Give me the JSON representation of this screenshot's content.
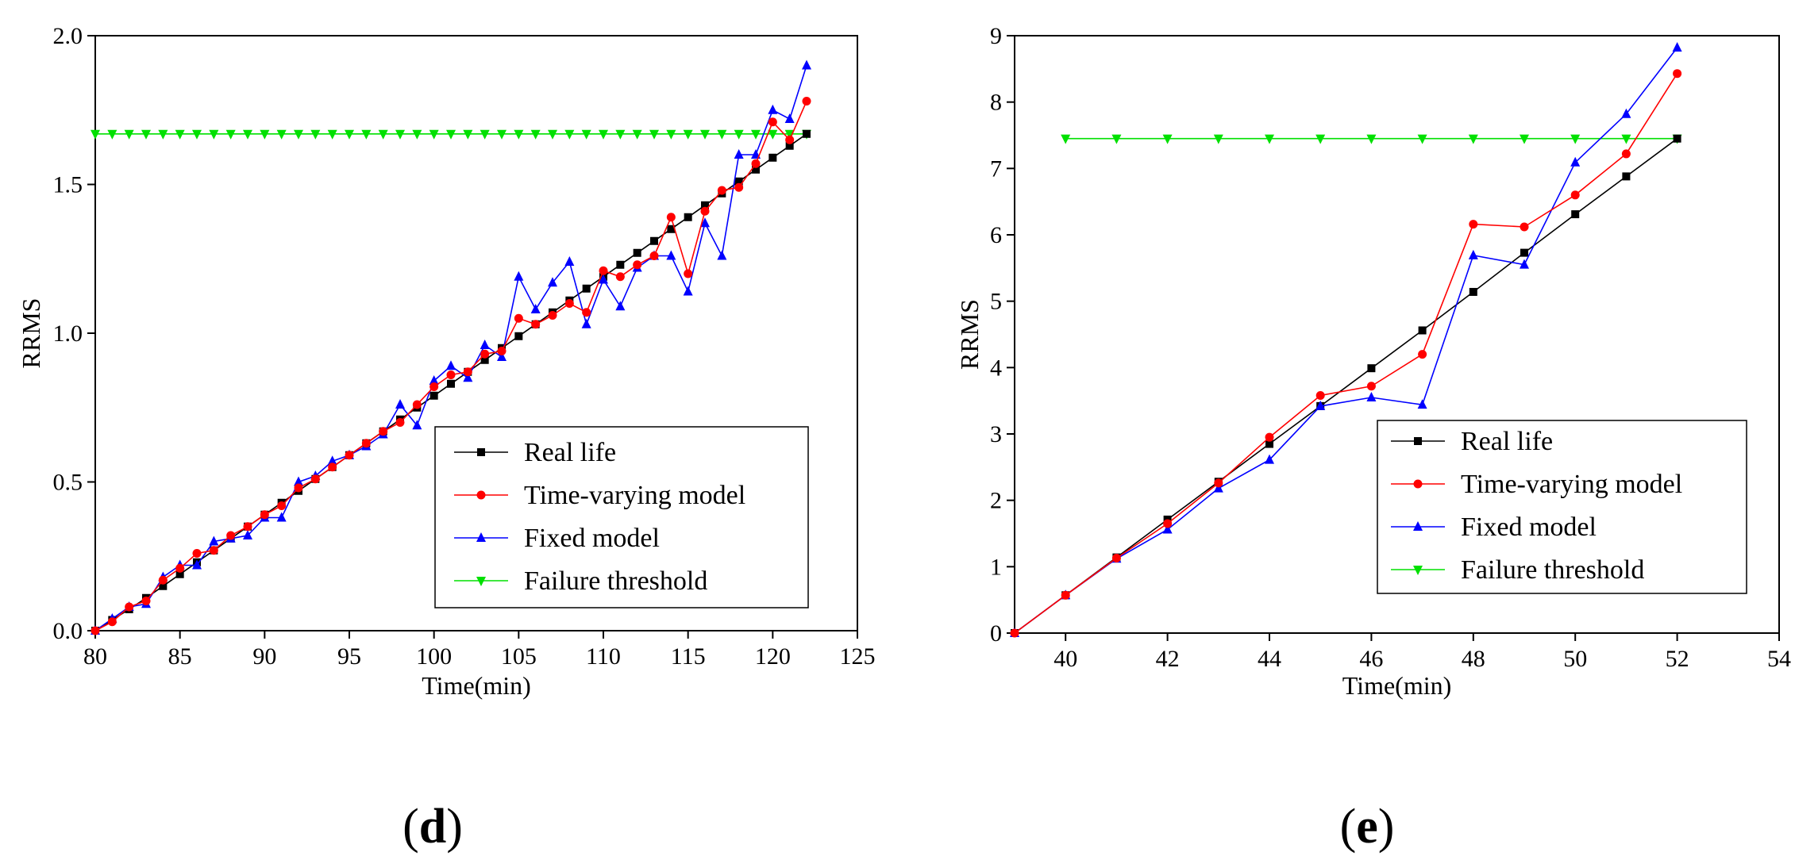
{
  "colors": {
    "real": "#000000",
    "time_varying": "#ff0000",
    "fixed": "#0000ff",
    "threshold": "#00e000"
  },
  "panels": [
    {
      "label_open": "(",
      "label_letter": "d",
      "label_close": ")"
    },
    {
      "label_open": "(",
      "label_letter": "e",
      "label_close": ")"
    }
  ],
  "chart_data": [
    {
      "type": "line",
      "xlabel": "Time(min)",
      "ylabel": "RRMS",
      "xlim": [
        80,
        125
      ],
      "ylim": [
        0.0,
        2.0
      ],
      "xticks": [
        "80",
        "85",
        "90",
        "95",
        "100",
        "105",
        "110",
        "115",
        "120",
        "125"
      ],
      "yticks": [
        "0.0",
        "0.5",
        "1.0",
        "1.5",
        "2.0"
      ],
      "legend_position": "bottom-right",
      "series": [
        {
          "name": "Real life",
          "marker": "square",
          "x": [
            80,
            81,
            82,
            83,
            84,
            85,
            86,
            87,
            88,
            89,
            90,
            91,
            92,
            93,
            94,
            95,
            96,
            97,
            98,
            99,
            100,
            101,
            102,
            103,
            104,
            105,
            106,
            107,
            108,
            109,
            110,
            111,
            112,
            113,
            114,
            115,
            116,
            117,
            118,
            119,
            120,
            121,
            122
          ],
          "y": [
            0.0,
            0.036,
            0.072,
            0.11,
            0.15,
            0.19,
            0.23,
            0.27,
            0.31,
            0.35,
            0.39,
            0.43,
            0.47,
            0.51,
            0.55,
            0.59,
            0.63,
            0.67,
            0.71,
            0.75,
            0.79,
            0.83,
            0.87,
            0.91,
            0.95,
            0.99,
            1.03,
            1.07,
            1.11,
            1.15,
            1.19,
            1.23,
            1.27,
            1.31,
            1.35,
            1.39,
            1.43,
            1.47,
            1.51,
            1.55,
            1.59,
            1.63,
            1.67
          ]
        },
        {
          "name": "Time-varying model",
          "marker": "circle",
          "x": [
            80,
            81,
            82,
            83,
            84,
            85,
            86,
            87,
            88,
            89,
            90,
            91,
            92,
            93,
            94,
            95,
            96,
            97,
            98,
            99,
            100,
            101,
            102,
            103,
            104,
            105,
            106,
            107,
            108,
            109,
            110,
            111,
            112,
            113,
            114,
            115,
            116,
            117,
            118,
            119,
            120,
            121,
            122
          ],
          "y": [
            0.0,
            0.03,
            0.08,
            0.1,
            0.17,
            0.21,
            0.26,
            0.27,
            0.32,
            0.35,
            0.39,
            0.42,
            0.48,
            0.51,
            0.55,
            0.59,
            0.63,
            0.67,
            0.7,
            0.76,
            0.82,
            0.86,
            0.87,
            0.93,
            0.94,
            1.05,
            1.03,
            1.06,
            1.1,
            1.07,
            1.21,
            1.19,
            1.23,
            1.26,
            1.39,
            1.2,
            1.41,
            1.48,
            1.49,
            1.57,
            1.71,
            1.65,
            1.78
          ]
        },
        {
          "name": "Fixed model",
          "marker": "triangle-up",
          "x": [
            80,
            81,
            82,
            83,
            84,
            85,
            86,
            87,
            88,
            89,
            90,
            91,
            92,
            93,
            94,
            95,
            96,
            97,
            98,
            99,
            100,
            101,
            102,
            103,
            104,
            105,
            106,
            107,
            108,
            109,
            110,
            111,
            112,
            113,
            114,
            115,
            116,
            117,
            118,
            119,
            120,
            121,
            122
          ],
          "y": [
            0.0,
            0.04,
            0.08,
            0.09,
            0.18,
            0.22,
            0.22,
            0.3,
            0.31,
            0.32,
            0.38,
            0.38,
            0.5,
            0.52,
            0.57,
            0.59,
            0.62,
            0.66,
            0.76,
            0.69,
            0.84,
            0.89,
            0.85,
            0.96,
            0.92,
            1.19,
            1.08,
            1.17,
            1.24,
            1.03,
            1.18,
            1.09,
            1.22,
            1.26,
            1.26,
            1.14,
            1.37,
            1.26,
            1.6,
            1.6,
            1.75,
            1.72,
            1.9
          ]
        },
        {
          "name": "Failure threshold",
          "marker": "triangle-down",
          "x": [
            80,
            81,
            82,
            83,
            84,
            85,
            86,
            87,
            88,
            89,
            90,
            91,
            92,
            93,
            94,
            95,
            96,
            97,
            98,
            99,
            100,
            101,
            102,
            103,
            104,
            105,
            106,
            107,
            108,
            109,
            110,
            111,
            112,
            113,
            114,
            115,
            116,
            117,
            118,
            119,
            120,
            121,
            122
          ],
          "y": [
            1.67,
            1.67,
            1.67,
            1.67,
            1.67,
            1.67,
            1.67,
            1.67,
            1.67,
            1.67,
            1.67,
            1.67,
            1.67,
            1.67,
            1.67,
            1.67,
            1.67,
            1.67,
            1.67,
            1.67,
            1.67,
            1.67,
            1.67,
            1.67,
            1.67,
            1.67,
            1.67,
            1.67,
            1.67,
            1.67,
            1.67,
            1.67,
            1.67,
            1.67,
            1.67,
            1.67,
            1.67,
            1.67,
            1.67,
            1.67,
            1.67,
            1.67,
            1.67
          ]
        }
      ]
    },
    {
      "type": "line",
      "xlabel": "Time(min)",
      "ylabel": "RRMS",
      "xlim": [
        39,
        54
      ],
      "ylim": [
        0,
        9
      ],
      "xticks": [
        "40",
        "42",
        "44",
        "46",
        "48",
        "50",
        "52",
        "54"
      ],
      "yticks": [
        "0",
        "1",
        "2",
        "3",
        "4",
        "5",
        "6",
        "7",
        "8",
        "9"
      ],
      "legend_position": "bottom-right",
      "series": [
        {
          "name": "Real life",
          "marker": "square",
          "x": [
            39,
            40,
            41,
            42,
            43,
            44,
            45,
            46,
            47,
            48,
            49,
            50,
            51,
            52
          ],
          "y": [
            0.0,
            0.57,
            1.14,
            1.71,
            2.28,
            2.85,
            3.42,
            3.99,
            4.56,
            5.14,
            5.73,
            6.31,
            6.88,
            7.45
          ]
        },
        {
          "name": "Time-varying model",
          "marker": "circle",
          "x": [
            39,
            40,
            41,
            42,
            43,
            44,
            45,
            46,
            47,
            48,
            49,
            50,
            51,
            52
          ],
          "y": [
            0.0,
            0.57,
            1.13,
            1.65,
            2.26,
            2.95,
            3.58,
            3.72,
            4.2,
            6.16,
            6.12,
            6.6,
            7.22,
            8.43
          ]
        },
        {
          "name": "Fixed model",
          "marker": "triangle-up",
          "x": [
            39,
            40,
            41,
            42,
            43,
            44,
            45,
            46,
            47,
            48,
            49,
            50,
            51,
            52
          ],
          "y": [
            0.0,
            0.57,
            1.12,
            1.56,
            2.18,
            2.61,
            3.42,
            3.55,
            3.44,
            5.69,
            5.55,
            7.09,
            7.82,
            8.82
          ]
        },
        {
          "name": "Failure threshold",
          "marker": "triangle-down",
          "x": [
            40,
            41,
            42,
            43,
            44,
            45,
            46,
            47,
            48,
            49,
            50,
            51,
            52
          ],
          "y": [
            7.45,
            7.45,
            7.45,
            7.45,
            7.45,
            7.45,
            7.45,
            7.45,
            7.45,
            7.45,
            7.45,
            7.45,
            7.45
          ]
        }
      ]
    }
  ]
}
